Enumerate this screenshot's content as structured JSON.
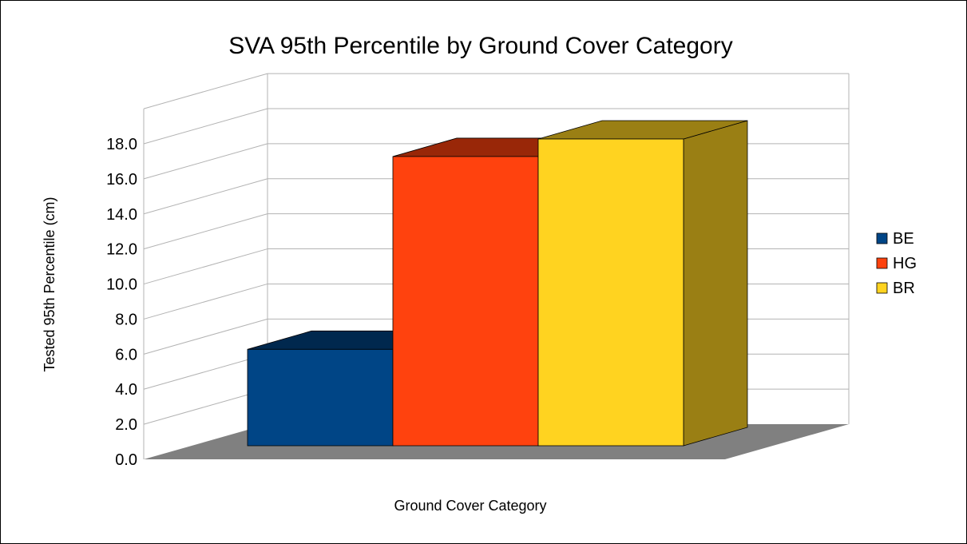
{
  "chart_data": {
    "type": "bar",
    "title": "SVA 95th Percentile by Ground Cover Category",
    "xlabel": "Ground Cover Category",
    "ylabel": "Tested 95th Percentile (cm)",
    "ylim": [
      0,
      18
    ],
    "yticks": [
      "0.0",
      "2.0",
      "4.0",
      "6.0",
      "8.0",
      "10.0",
      "12.0",
      "14.0",
      "16.0",
      "18.0"
    ],
    "grid": true,
    "legend_position": "right",
    "series": [
      {
        "name": "BE",
        "value": 5.5,
        "color": "#004586",
        "top_color": "#00284e",
        "side_color": "#00284e"
      },
      {
        "name": "HG",
        "value": 16.5,
        "color": "#ff420e",
        "top_color": "#992708",
        "side_color": "#992708"
      },
      {
        "name": "BR",
        "value": 17.5,
        "color": "#ffd320",
        "top_color": "#9a7f14",
        "side_color": "#9a7f14"
      }
    ],
    "floor_color": "#808080"
  }
}
